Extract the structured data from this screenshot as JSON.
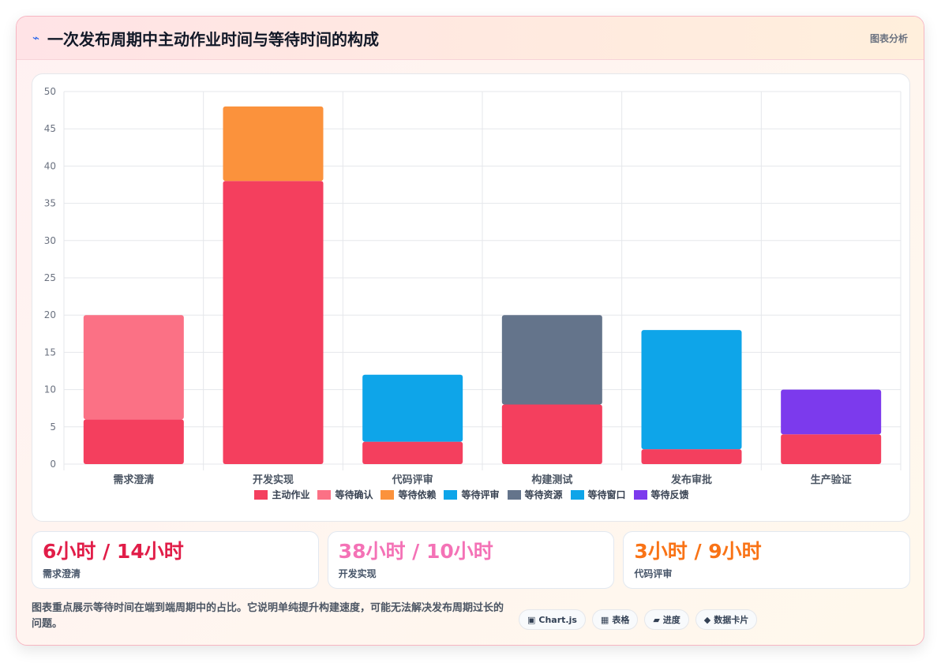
{
  "header": {
    "icon": "bolt-icon",
    "title": "一次发布周期中主动作业时间与等待时间的构成",
    "badge": "图表分析"
  },
  "chart_data": {
    "type": "bar",
    "stacked": true,
    "categories": [
      "需求澄清",
      "开发实现",
      "代码评审",
      "构建测试",
      "发布审批",
      "生产验证"
    ],
    "ylim": [
      0,
      50
    ],
    "yticks": [
      0,
      5,
      10,
      15,
      20,
      25,
      30,
      35,
      40,
      45,
      50
    ],
    "grid": true,
    "legend_position": "bottom",
    "series": [
      {
        "name": "主动作业",
        "color": "#f43f5e",
        "values": [
          6,
          38,
          3,
          8,
          2,
          4
        ]
      },
      {
        "name": "等待确认",
        "color": "#fb7185",
        "values": [
          14,
          0,
          0,
          0,
          0,
          0
        ]
      },
      {
        "name": "等待依赖",
        "color": "#fb923c",
        "values": [
          0,
          10,
          0,
          0,
          0,
          0
        ]
      },
      {
        "name": "等待评审",
        "color": "#0ea5e9",
        "values": [
          0,
          0,
          9,
          0,
          0,
          0
        ]
      },
      {
        "name": "等待资源",
        "color": "#64748b",
        "values": [
          0,
          0,
          0,
          12,
          0,
          0
        ]
      },
      {
        "name": "等待窗口",
        "color": "#0ea5e9",
        "values": [
          0,
          0,
          0,
          0,
          16,
          0
        ]
      },
      {
        "name": "等待反馈",
        "color": "#7c3aed",
        "values": [
          0,
          0,
          0,
          0,
          0,
          6
        ]
      }
    ]
  },
  "stats": [
    {
      "value": "6小时 / 14小时",
      "label": "需求澄清",
      "color": "#e11d48"
    },
    {
      "value": "38小时 / 10小时",
      "label": "开发实现",
      "color": "#f472b6"
    },
    {
      "value": "3小时 / 9小时",
      "label": "代码评审",
      "color": "#f97316"
    }
  ],
  "footer": {
    "note": "图表重点展示等待时间在端到端周期中的占比。它说明单纯提升构建速度，可能无法解决发布周期过长的问题。",
    "tags": [
      {
        "icon": "▣",
        "label": "Chart.js"
      },
      {
        "icon": "▦",
        "label": "表格"
      },
      {
        "icon": "▰",
        "label": "进度"
      },
      {
        "icon": "◆",
        "label": "数据卡片"
      }
    ]
  }
}
